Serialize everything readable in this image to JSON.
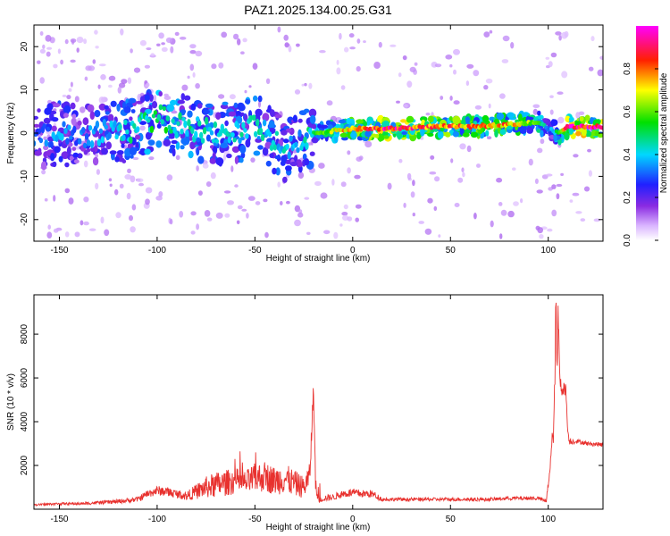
{
  "title": "PAZ1.2025.134.00.25.G31",
  "colors": {
    "line": "#e8312e",
    "axis": "#000000",
    "background": "#ffffff"
  },
  "colorbar": {
    "label": "Normalized spectral amplitude",
    "ticks": [
      "0.0",
      "0.2",
      "0.4",
      "0.6",
      "0.8"
    ],
    "tick_values": [
      0.0,
      0.2,
      0.4,
      0.6,
      0.8
    ],
    "range": [
      0,
      1
    ],
    "colormap": "rainbow (white-purple-blue-cyan-green-yellow-red-magenta)"
  },
  "chart_data": [
    {
      "type": "heatmap",
      "xlabel": "Height of straight line (km)",
      "ylabel": "Frequency (Hz)",
      "xlim": [
        -163,
        128
      ],
      "ylim": [
        -25,
        25
      ],
      "xticks": [
        -150,
        -100,
        -50,
        0,
        50,
        100
      ],
      "yticks": [
        -20,
        -10,
        0,
        10,
        20
      ],
      "ridge": {
        "x": [
          -160,
          -150,
          -140,
          -130,
          -120,
          -110,
          -100,
          -90,
          -80,
          -70,
          -60,
          -50,
          -45,
          -40,
          -35,
          -30,
          -25,
          -20,
          -10,
          0,
          20,
          40,
          60,
          80,
          95,
          100,
          105,
          110,
          128
        ],
        "frequency": [
          -1,
          0,
          -1,
          0,
          0,
          1,
          4,
          2,
          1,
          0,
          0,
          2,
          0,
          -2,
          -4,
          -3,
          -2,
          0,
          0.5,
          1,
          1,
          1.5,
          1.5,
          2,
          2.5,
          1,
          0,
          1.5,
          1.5
        ],
        "intensity": [
          0.3,
          0.35,
          0.3,
          0.35,
          0.4,
          0.45,
          0.5,
          0.45,
          0.45,
          0.4,
          0.4,
          0.45,
          0.4,
          0.4,
          0.4,
          0.35,
          0.4,
          0.5,
          0.65,
          0.75,
          0.9,
          0.8,
          0.75,
          0.75,
          0.6,
          0.3,
          0.5,
          0.9,
          0.9
        ]
      }
    },
    {
      "type": "line",
      "xlabel": "Height of straight line (km)",
      "ylabel": "SNR (10 * v/v)",
      "xlim": [
        -163,
        128
      ],
      "ylim": [
        0,
        9800
      ],
      "xticks": [
        -150,
        -100,
        -50,
        0,
        50,
        100
      ],
      "yticks": [
        2000,
        4000,
        6000,
        8000
      ],
      "series": [
        {
          "x": [
            -163,
            -150,
            -140,
            -130,
            -120,
            -110,
            -105,
            -100,
            -95,
            -90,
            -85,
            -80,
            -75,
            -70,
            -65,
            -60,
            -55,
            -50,
            -45,
            -40,
            -35,
            -30,
            -25,
            -22,
            -20,
            -19,
            -18,
            -17,
            -15,
            -10,
            -5,
            0,
            5,
            10,
            12,
            15,
            20,
            30,
            40,
            50,
            60,
            70,
            80,
            90,
            95,
            99,
            101,
            103,
            104,
            104.5,
            105,
            106,
            107,
            108,
            109,
            110,
            111,
            115,
            120,
            128
          ],
          "y": [
            200,
            250,
            250,
            300,
            350,
            450,
            700,
            850,
            800,
            700,
            600,
            800,
            1000,
            1100,
            1200,
            1300,
            1200,
            1400,
            1500,
            1300,
            1400,
            1200,
            1000,
            1500,
            5500,
            1200,
            500,
            400,
            500,
            550,
            700,
            750,
            700,
            700,
            600,
            450,
            450,
            450,
            450,
            450,
            450,
            450,
            500,
            500,
            500,
            350,
            2000,
            4000,
            9800,
            5500,
            8900,
            6000,
            5500,
            5500,
            5500,
            3500,
            3100,
            3100,
            3000,
            2950
          ],
          "noise": [
            40,
            60,
            60,
            80,
            100,
            120,
            180,
            220,
            220,
            200,
            200,
            350,
            500,
            600,
            600,
            600,
            550,
            700,
            700,
            650,
            700,
            600,
            500,
            600,
            600,
            300,
            150,
            120,
            150,
            150,
            180,
            200,
            180,
            180,
            160,
            90,
            80,
            80,
            80,
            80,
            80,
            80,
            90,
            90,
            90,
            80,
            400,
            700,
            600,
            600,
            600,
            600,
            300,
            300,
            300,
            200,
            150,
            100,
            100,
            100
          ]
        }
      ]
    }
  ]
}
